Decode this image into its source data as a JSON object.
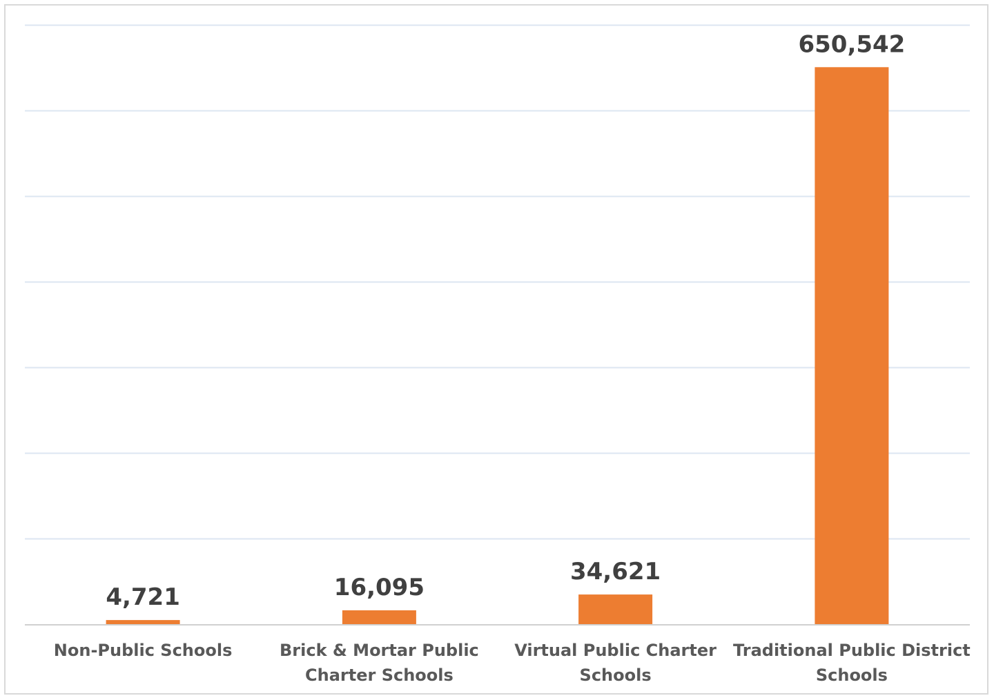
{
  "chart_data": {
    "type": "bar",
    "categories": [
      [
        "Non-Public Schools"
      ],
      [
        "Brick & Mortar Public",
        "Charter Schools"
      ],
      [
        "Virtual Public Charter",
        "Schools"
      ],
      [
        "Traditional Public District",
        "Schools"
      ]
    ],
    "values": [
      4721,
      16095,
      34621,
      650542
    ],
    "value_labels": [
      "4,721",
      "16,095",
      "34,621",
      "650,542"
    ],
    "ylim": [
      0,
      700000
    ],
    "gridline_step": 100000,
    "grid": true,
    "y_axis_labels_shown": false,
    "legend": "none",
    "colors": {
      "bar": "#ed7d31",
      "gridline": "#dce6f2",
      "data_label": "#404040",
      "category_label": "#595959"
    }
  }
}
